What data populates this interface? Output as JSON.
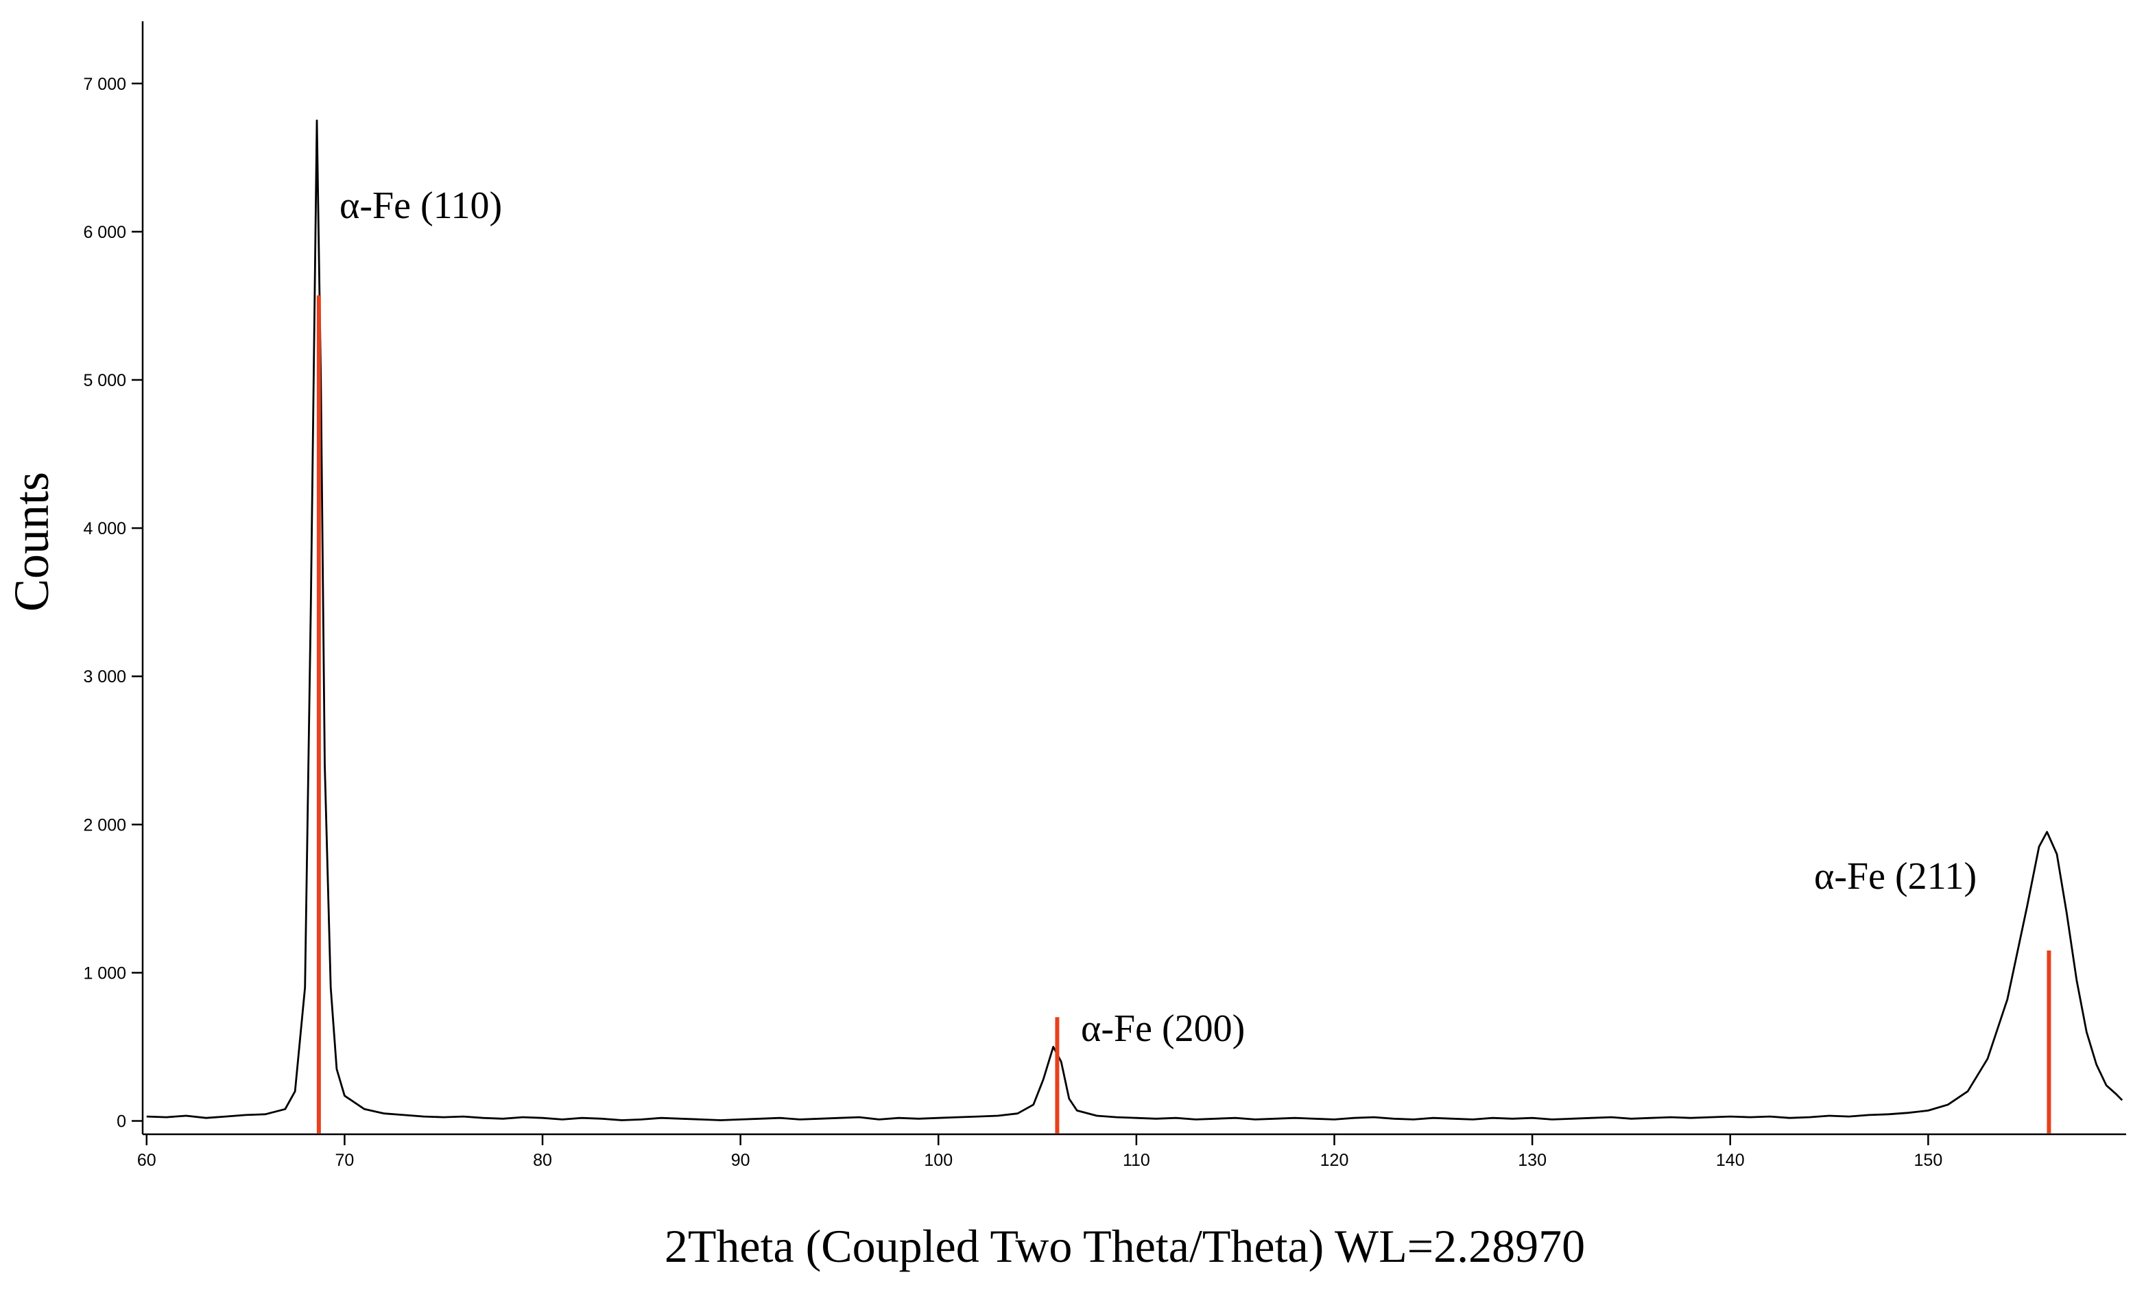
{
  "chart_data": {
    "type": "line",
    "xlabel": "2Theta (Coupled Two Theta/Theta) WL=2.28970",
    "ylabel": "Counts",
    "xlim": [
      59.8,
      160
    ],
    "ylim": [
      -90,
      7420
    ],
    "xticks": [
      60,
      70,
      80,
      90,
      100,
      110,
      120,
      130,
      140,
      150
    ],
    "yticks": [
      0,
      {
        "value": 1000,
        "label": "1 000"
      },
      {
        "value": 2000,
        "label": "2 000"
      },
      {
        "value": 3000,
        "label": "3 000"
      },
      {
        "value": 4000,
        "label": "4 000"
      },
      {
        "value": 5000,
        "label": "5 000"
      },
      {
        "value": 6000,
        "label": "6 000"
      },
      {
        "value": 7000,
        "label": "7 000"
      }
    ],
    "series": [
      {
        "kind": "line",
        "color": "#000000",
        "x": [
          60,
          61,
          62,
          63,
          64,
          65,
          66,
          67,
          67.5,
          68,
          68.3,
          68.6,
          68.8,
          69,
          69.3,
          69.6,
          70,
          71,
          72,
          73,
          74,
          75,
          76,
          77,
          78,
          79,
          80,
          81,
          82,
          83,
          84,
          85,
          86,
          87,
          88,
          89,
          90,
          91,
          92,
          93,
          94,
          95,
          96,
          97,
          98,
          99,
          100,
          101,
          102,
          103,
          104,
          104.8,
          105.3,
          105.8,
          106.2,
          106.6,
          107,
          108,
          109,
          110,
          111,
          112,
          113,
          114,
          115,
          116,
          117,
          118,
          119,
          120,
          121,
          122,
          123,
          124,
          125,
          126,
          127,
          128,
          129,
          130,
          131,
          132,
          133,
          134,
          135,
          136,
          137,
          138,
          139,
          140,
          141,
          142,
          143,
          144,
          145,
          146,
          147,
          148,
          149,
          150,
          151,
          152,
          153,
          154,
          155,
          155.6,
          156,
          156.5,
          157,
          157.5,
          158,
          158.5,
          159,
          159.5,
          159.8
        ],
        "values": [
          30,
          25,
          35,
          20,
          30,
          40,
          45,
          80,
          200,
          900,
          3500,
          6750,
          5000,
          2400,
          900,
          350,
          170,
          80,
          50,
          40,
          30,
          25,
          30,
          20,
          15,
          25,
          20,
          10,
          20,
          15,
          5,
          10,
          20,
          15,
          10,
          5,
          10,
          15,
          20,
          10,
          15,
          20,
          25,
          10,
          20,
          15,
          20,
          25,
          30,
          35,
          50,
          110,
          280,
          500,
          400,
          150,
          70,
          35,
          25,
          20,
          15,
          20,
          10,
          15,
          20,
          10,
          15,
          20,
          15,
          10,
          20,
          25,
          15,
          10,
          20,
          15,
          10,
          20,
          15,
          20,
          10,
          15,
          20,
          25,
          15,
          20,
          25,
          20,
          25,
          30,
          25,
          30,
          20,
          25,
          35,
          30,
          40,
          45,
          55,
          70,
          110,
          200,
          420,
          820,
          1450,
          1850,
          1950,
          1800,
          1400,
          950,
          600,
          380,
          240,
          180,
          140
        ]
      },
      {
        "kind": "stick",
        "color": "#e8401c",
        "x": [
          68.7,
          106.0,
          156.1
        ],
        "values": [
          5570,
          700,
          1150
        ]
      }
    ],
    "annotations": [
      "α-Fe (110)",
      "α-Fe (200)",
      "α-Fe (211)"
    ]
  }
}
